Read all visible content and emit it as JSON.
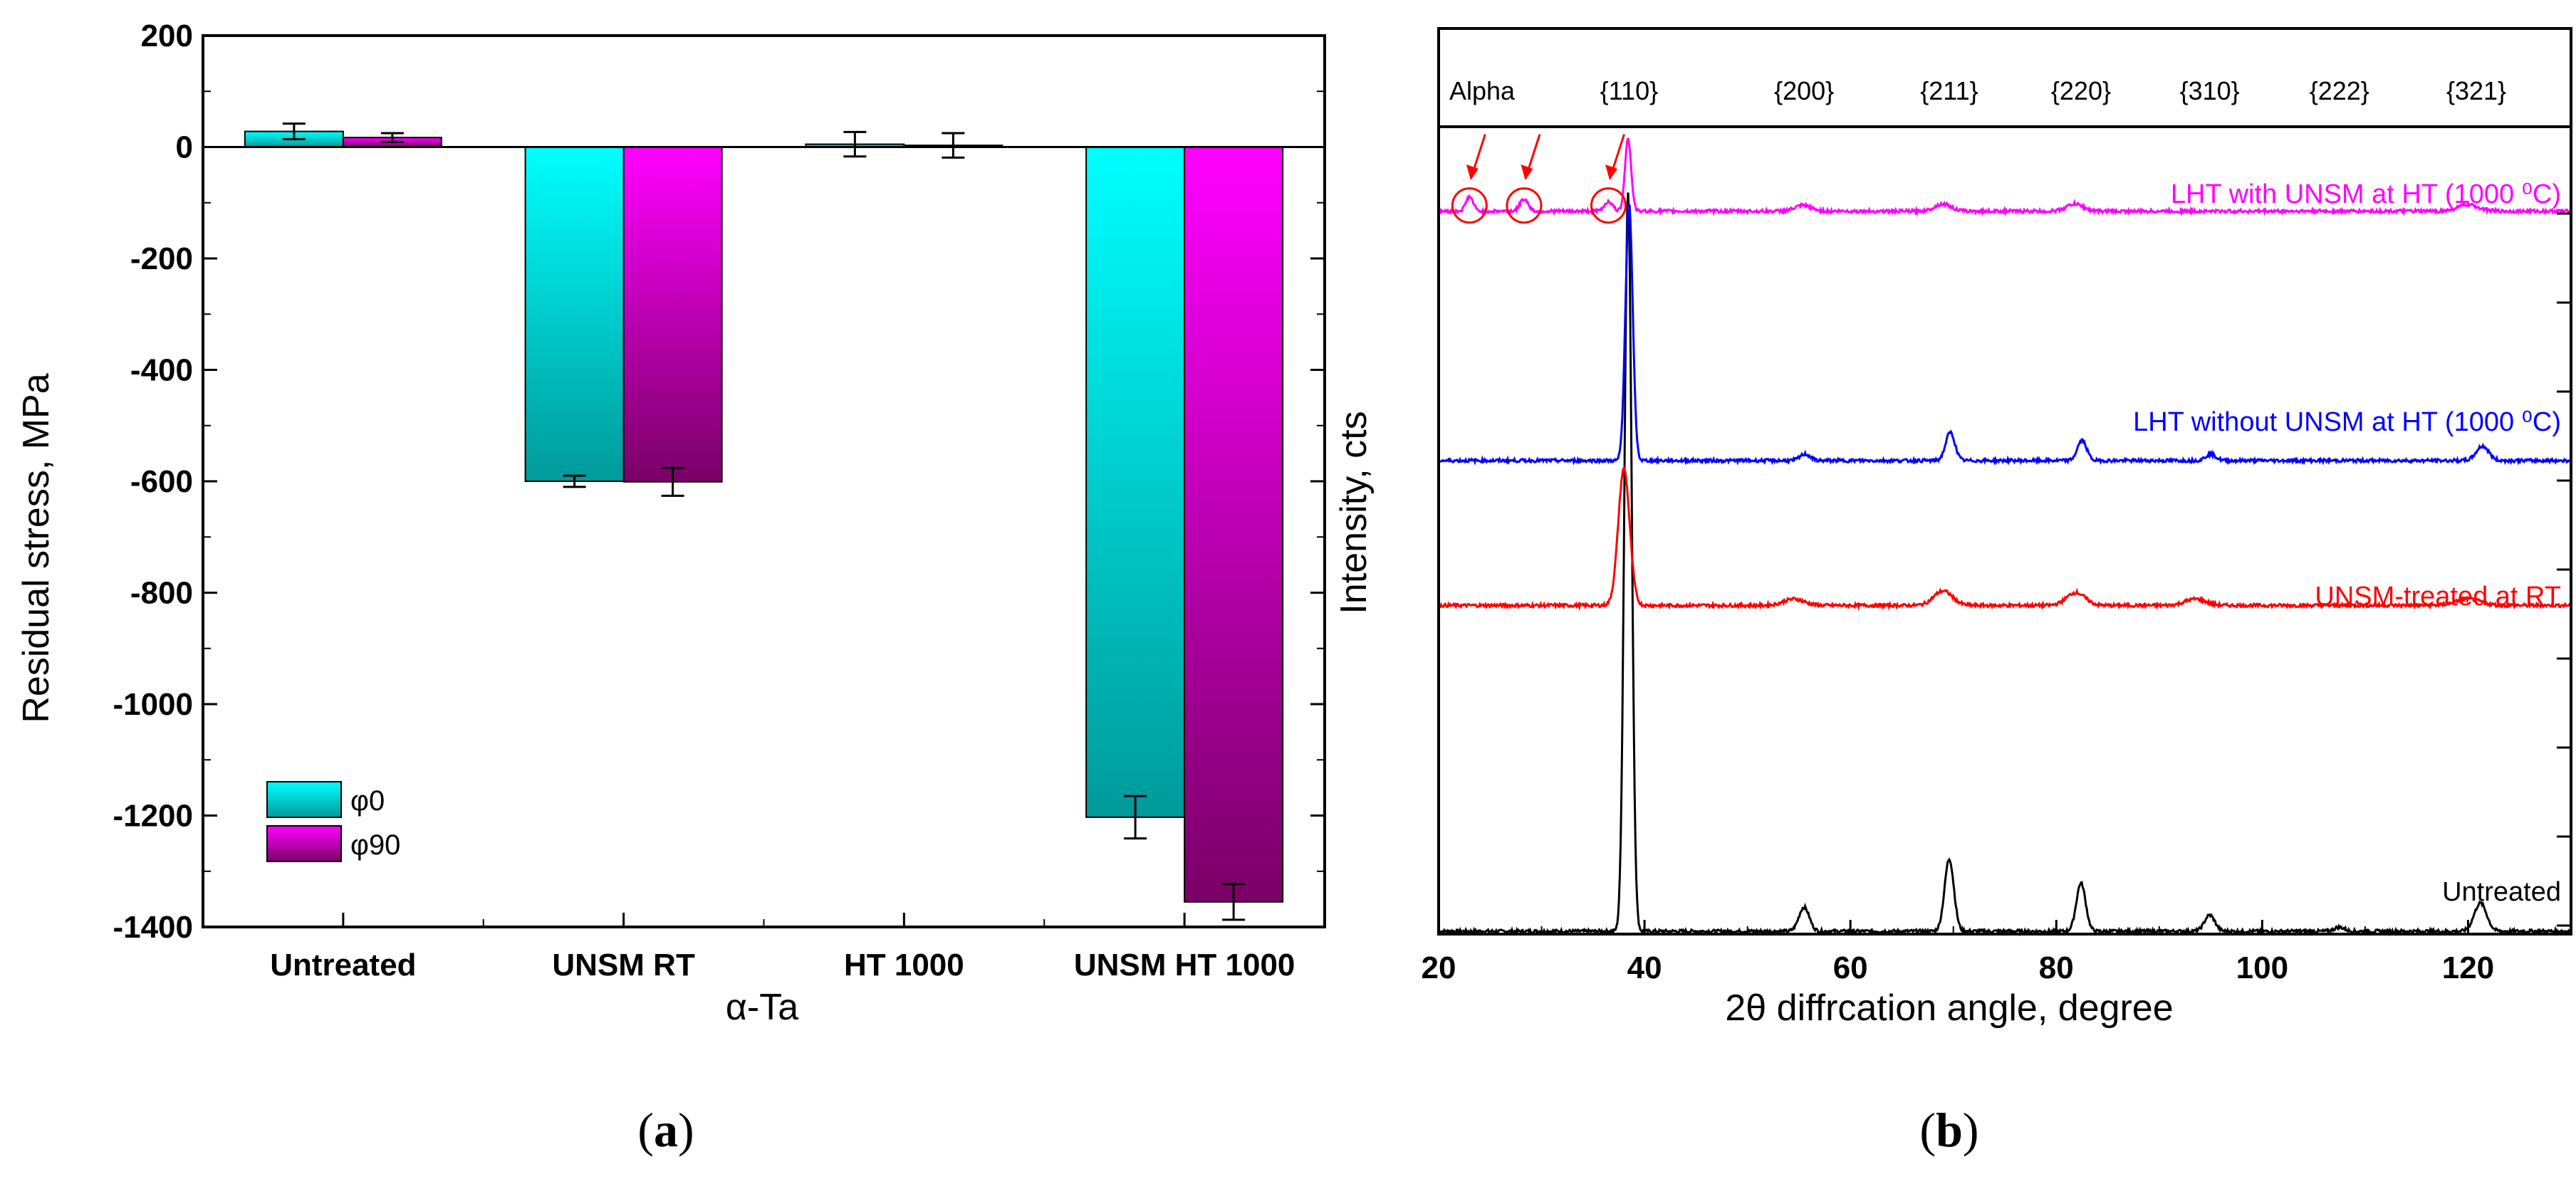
{
  "chart_data": [
    {
      "type": "bar",
      "panel_label": "a",
      "xlabel": "α-Ta",
      "ylabel": "Residual stress, MPa",
      "ylim": [
        -1400,
        200
      ],
      "yticks": [
        200,
        0,
        -200,
        -400,
        -600,
        -800,
        -1000,
        -1200,
        -1400
      ],
      "categories": [
        "Untreated",
        "UNSM RT",
        "HT 1000",
        "UNSM HT 1000"
      ],
      "series": [
        {
          "name": "φ0",
          "values": [
            28,
            -600,
            5,
            -1203
          ],
          "errors": [
            14,
            10,
            22,
            38
          ],
          "color_top": "#00ffff",
          "color_bottom": "#009a9a"
        },
        {
          "name": "φ90",
          "values": [
            17,
            -601,
            3,
            -1355
          ],
          "errors": [
            8,
            25,
            22,
            32
          ],
          "color_top": "#ff00ff",
          "color_bottom": "#7a0066"
        }
      ],
      "legend_position": "bottom-left"
    },
    {
      "type": "line",
      "panel_label": "b",
      "xlabel": "2θ diffrcation angle, degree",
      "ylabel": "Intensity, cts",
      "xlim": [
        20,
        130
      ],
      "xticks": [
        20,
        40,
        60,
        80,
        100,
        120
      ],
      "header_label": "Alpha",
      "peak_labels": [
        {
          "label": "{110}",
          "x": 38.5
        },
        {
          "label": "{200}",
          "x": 55.5
        },
        {
          "label": "{211}",
          "x": 69.6
        },
        {
          "label": "{220}",
          "x": 82.4
        },
        {
          "label": "{310}",
          "x": 94.9
        },
        {
          "label": "{222}",
          "x": 107.5
        },
        {
          "label": "{321}",
          "x": 120.8
        }
      ],
      "series": [
        {
          "name": "Untreated",
          "color": "#000000",
          "baseline": 0.0,
          "peaks": [
            [
              38.4,
              0.92,
              0.35
            ],
            [
              55.5,
              0.03,
              0.5
            ],
            [
              69.6,
              0.09,
              0.45
            ],
            [
              82.4,
              0.06,
              0.45
            ],
            [
              94.9,
              0.02,
              0.5
            ],
            [
              107.5,
              0.005,
              0.5
            ],
            [
              121.2,
              0.035,
              0.6
            ]
          ]
        },
        {
          "name": "UNSM-treated at RT",
          "color": "#ff0000",
          "baseline": 0.405,
          "peaks": [
            [
              38.0,
              0.17,
              0.55
            ],
            [
              54.5,
              0.008,
              1.0
            ],
            [
              69.0,
              0.018,
              0.9
            ],
            [
              81.9,
              0.016,
              0.9
            ],
            [
              93.5,
              0.008,
              1.0
            ],
            [
              120.0,
              0.008,
              1.2
            ]
          ]
        },
        {
          "name": "LHT without UNSM at HT (1000 ⁰C)",
          "color": "#0000ff",
          "baseline": 0.585,
          "peaks": [
            [
              38.5,
              0.32,
              0.35
            ],
            [
              55.6,
              0.008,
              0.5
            ],
            [
              69.7,
              0.035,
              0.45
            ],
            [
              82.5,
              0.025,
              0.45
            ],
            [
              95.0,
              0.008,
              0.5
            ],
            [
              121.4,
              0.018,
              0.6
            ]
          ]
        },
        {
          "name": "LHT with UNSM at HT (1000 ⁰C)",
          "color": "#ff00ff",
          "baseline": 0.895,
          "peaks": [
            [
              23.0,
              0.018,
              0.35
            ],
            [
              28.3,
              0.015,
              0.4
            ],
            [
              36.5,
              0.012,
              0.4
            ],
            [
              38.4,
              0.09,
              0.3
            ],
            [
              55.4,
              0.007,
              0.8
            ],
            [
              69.0,
              0.009,
              0.8
            ],
            [
              81.8,
              0.009,
              0.8
            ],
            [
              120.0,
              0.008,
              1.0
            ]
          ]
        }
      ],
      "highlighted_peaks_x": [
        23.0,
        28.3,
        36.5
      ]
    }
  ]
}
